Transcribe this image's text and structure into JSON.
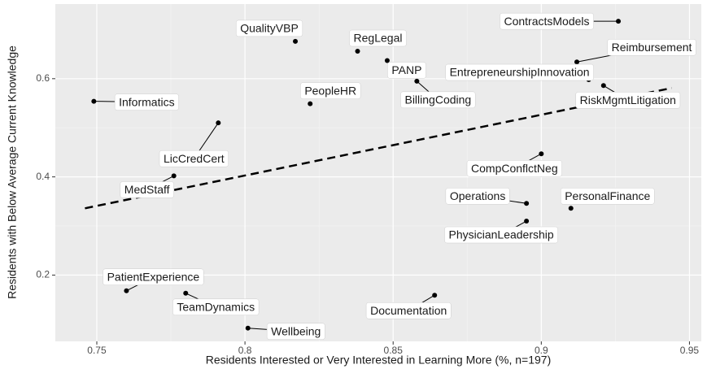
{
  "chart_data": {
    "type": "scatter",
    "x_label": "Residents Interested or Very Interested in Learning More (%, n=197)",
    "y_label": "Residents with Below Average Current Knowledge",
    "labels": [
      "ContractsModels",
      "QualityVBP",
      "RegLegal",
      "PANP",
      "BillingCoding",
      "Reimbursement",
      "EntrepreneurshipInnovation",
      "RiskMgmtLitigation",
      "Informatics",
      "PeopleHR",
      "LicCredCert",
      "MedStaff",
      "CompConflctNeg",
      "Operations",
      "PersonalFinance",
      "PhysicianLeadership",
      "PatientExperience",
      "TeamDynamics",
      "Documentation",
      "Wellbeing"
    ],
    "x": [
      0.926,
      0.817,
      0.838,
      0.848,
      0.858,
      0.912,
      0.916,
      0.921,
      0.749,
      0.822,
      0.791,
      0.776,
      0.9,
      0.895,
      0.91,
      0.895,
      0.76,
      0.78,
      0.864,
      0.801
    ],
    "values": [
      0.717,
      0.676,
      0.656,
      0.637,
      0.595,
      0.634,
      0.598,
      0.586,
      0.554,
      0.549,
      0.51,
      0.402,
      0.447,
      0.346,
      0.336,
      0.31,
      0.168,
      0.163,
      0.159,
      0.092
    ],
    "color": "#000000",
    "trend": {
      "x": [
        0.746,
        0.944
      ],
      "values": [
        0.336,
        0.581
      ]
    },
    "xlim": [
      0.736,
      0.954
    ],
    "ylim": [
      0.065,
      0.752
    ],
    "xticks": [
      0.75,
      0.8,
      0.85,
      0.9,
      0.95
    ],
    "yticks": [
      0.2,
      0.4,
      0.6
    ],
    "grid": true
  }
}
